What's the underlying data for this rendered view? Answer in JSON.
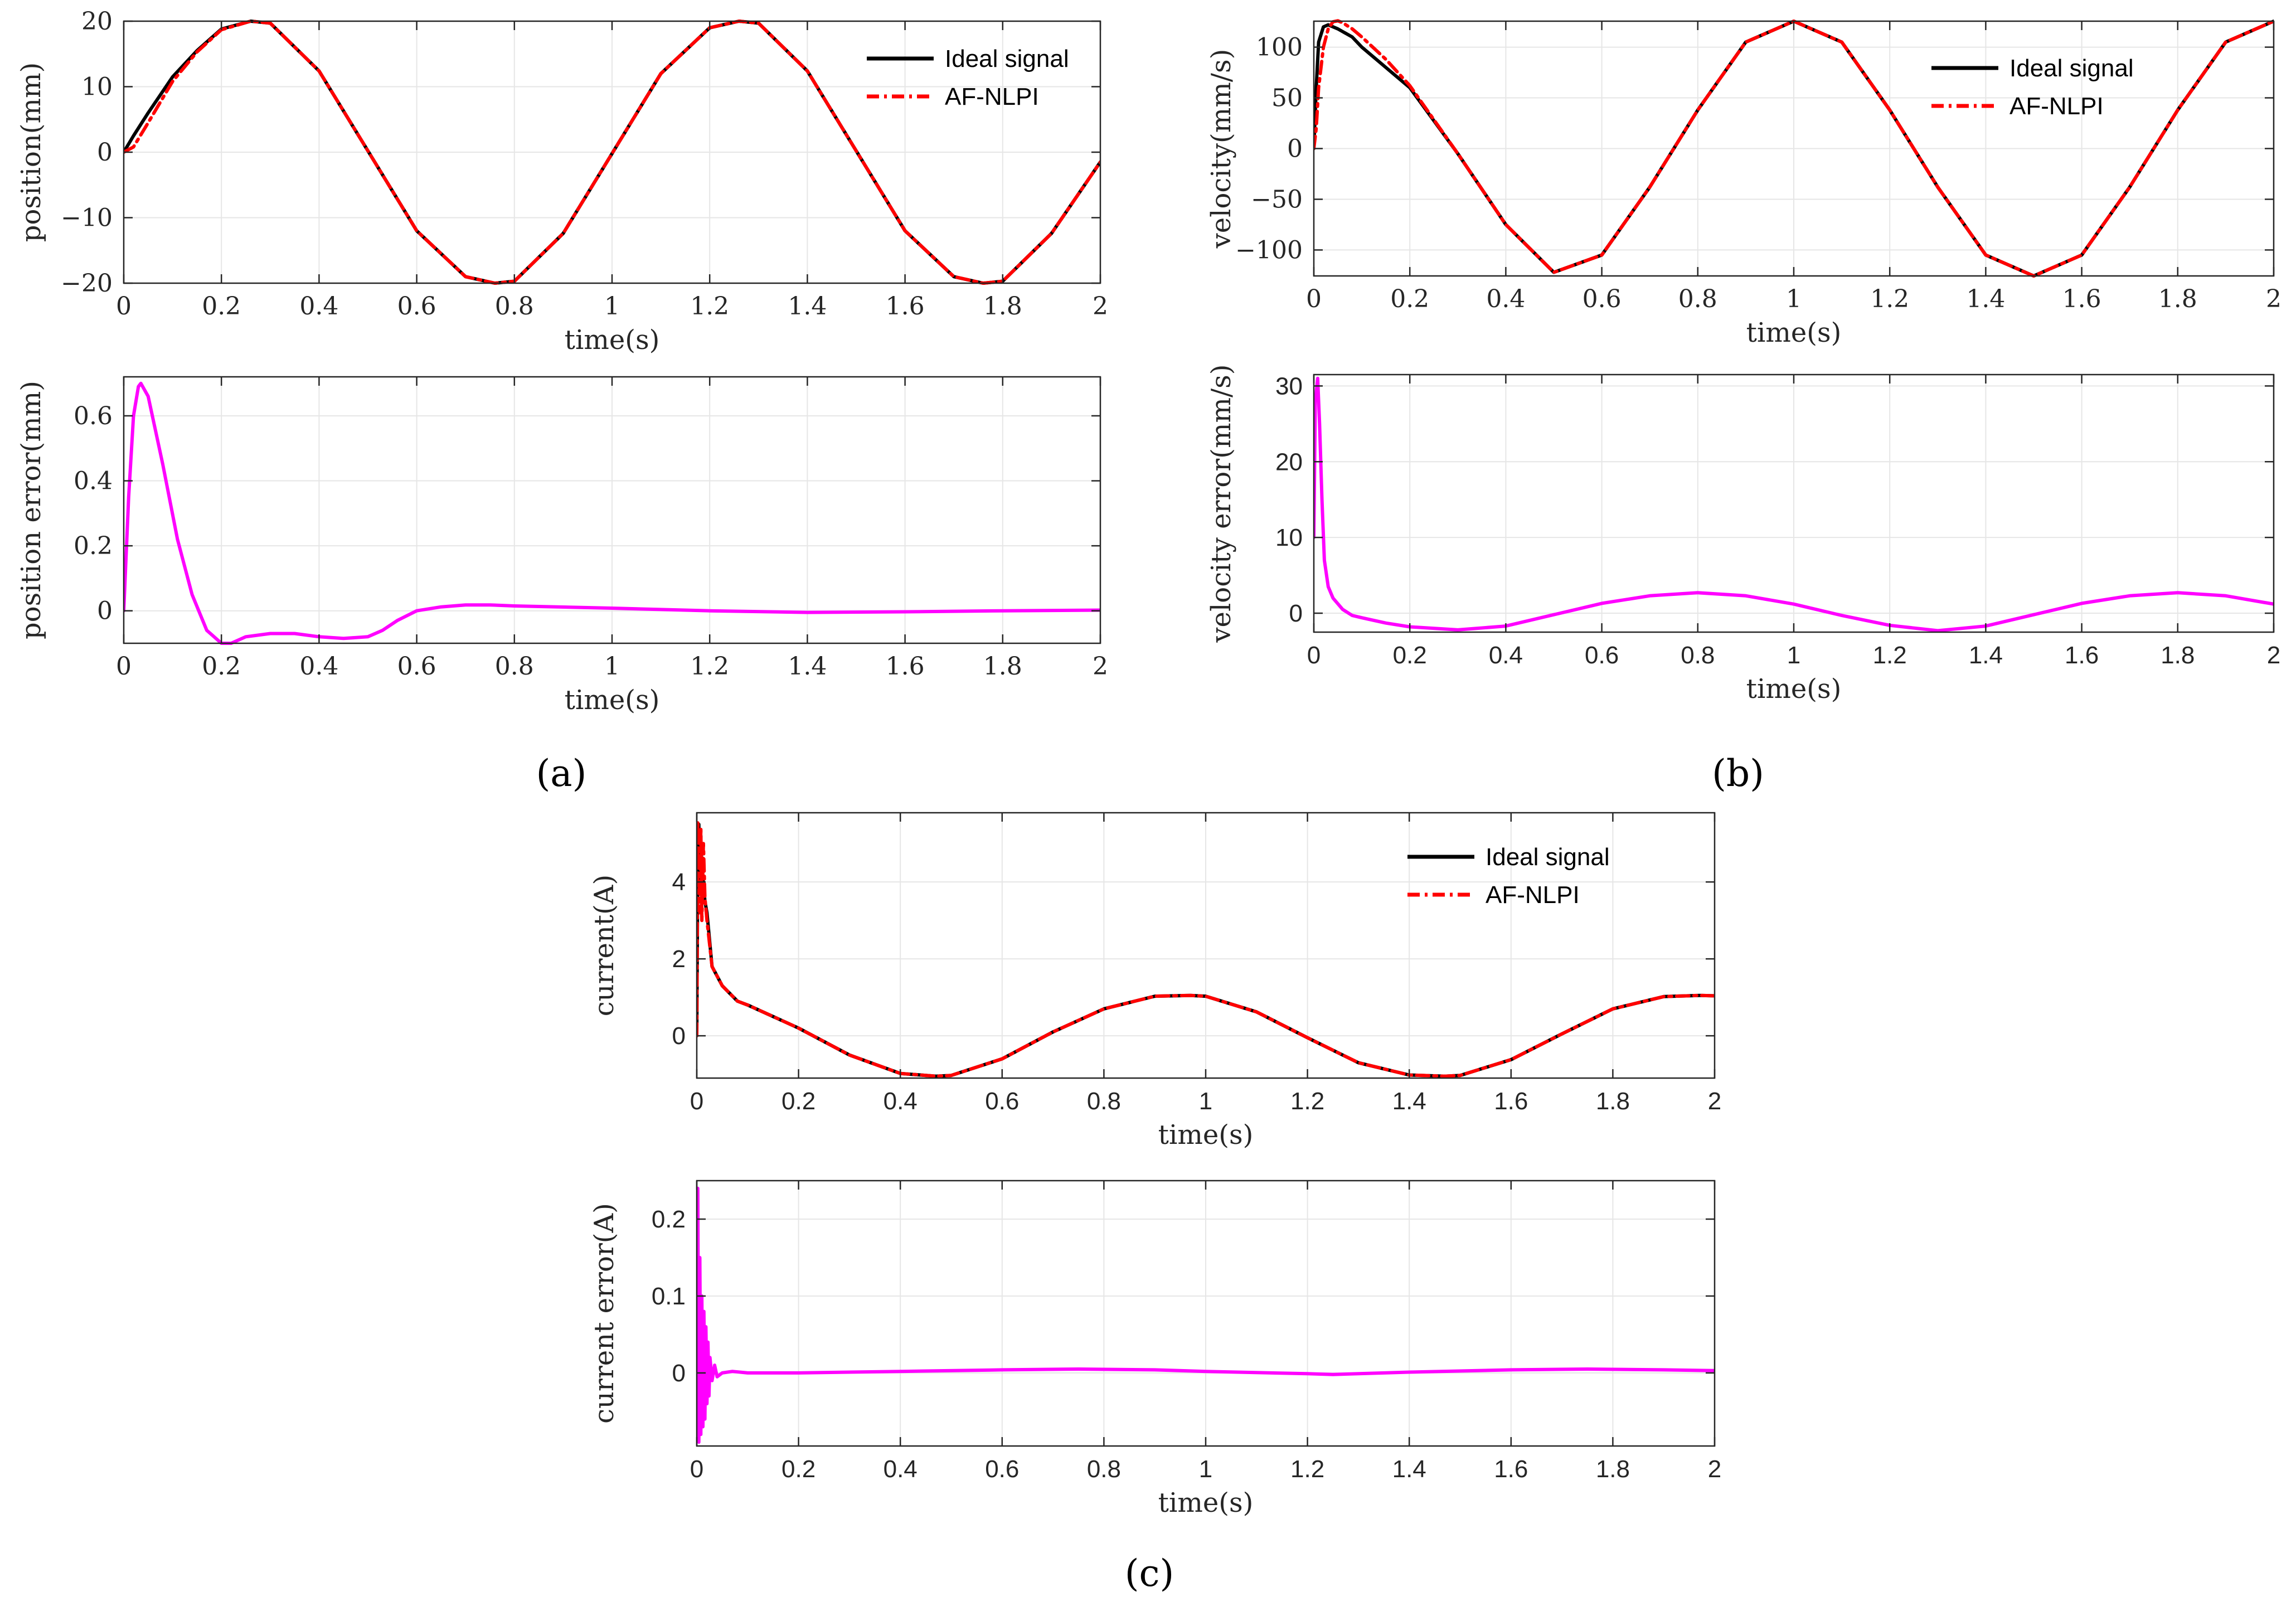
{
  "chart_data": [
    {
      "id": "a-top",
      "type": "line",
      "xlabel": "time(s)",
      "ylabel": "position(mm)",
      "xlim": [
        0,
        2
      ],
      "ylim": [
        -20,
        20
      ],
      "xticks": [
        "0",
        "0.2",
        "0.4",
        "0.6",
        "0.8",
        "1",
        "1.2",
        "1.4",
        "1.6",
        "1.8",
        "2"
      ],
      "xtickvals": [
        0,
        0.2,
        0.4,
        0.6,
        0.8,
        1,
        1.2,
        1.4,
        1.6,
        1.8,
        2
      ],
      "yticks": [
        "20",
        "10",
        "0",
        "−10",
        "−20"
      ],
      "ytickvals": [
        20,
        10,
        0,
        -10,
        -20
      ],
      "grid": true,
      "tick_font": "serif",
      "legend_position": "top-right",
      "series": [
        {
          "name": "Ideal signal",
          "color": "#000000",
          "dash": "solid",
          "in_legend": true,
          "x": [
            0,
            0.02,
            0.05,
            0.1,
            0.15,
            0.2,
            0.26,
            0.3,
            0.4,
            0.5,
            0.6,
            0.7,
            0.76,
            0.8,
            0.9,
            1.0,
            1.1,
            1.2,
            1.26,
            1.3,
            1.4,
            1.5,
            1.6,
            1.7,
            1.76,
            1.8,
            1.9,
            2.0
          ],
          "y": [
            0,
            2.5,
            6,
            11.5,
            15.5,
            18.8,
            20,
            19.7,
            12.4,
            0.2,
            -12,
            -19,
            -20,
            -19.7,
            -12.4,
            -0.2,
            12,
            19,
            20,
            19.7,
            12.4,
            0.2,
            -12,
            -19,
            -20,
            -19.7,
            -12.4,
            -1.5
          ]
        },
        {
          "name": "AF-NLPI",
          "color": "#ff0000",
          "dash": "dashdot",
          "in_legend": true,
          "x": [
            0,
            0.02,
            0.05,
            0.1,
            0.15,
            0.2,
            0.26,
            0.3,
            0.4,
            0.5,
            0.6,
            0.7,
            0.76,
            0.8,
            0.9,
            1.0,
            1.1,
            1.2,
            1.26,
            1.3,
            1.4,
            1.5,
            1.6,
            1.7,
            1.76,
            1.8,
            1.9,
            2.0
          ],
          "y": [
            0,
            0.8,
            4.5,
            10.8,
            15.3,
            18.7,
            20,
            19.7,
            12.4,
            0.2,
            -12,
            -19,
            -20,
            -19.7,
            -12.4,
            -0.2,
            12,
            19,
            20,
            19.7,
            12.4,
            0.2,
            -12,
            -19,
            -20,
            -19.7,
            -12.4,
            -1.5
          ]
        }
      ]
    },
    {
      "id": "a-bottom",
      "type": "line",
      "xlabel": "time(s)",
      "ylabel": "position error(mm)",
      "xlim": [
        0,
        2
      ],
      "ylim": [
        -0.1,
        0.72
      ],
      "xticks": [
        "0",
        "0.2",
        "0.4",
        "0.6",
        "0.8",
        "1",
        "1.2",
        "1.4",
        "1.6",
        "1.8",
        "2"
      ],
      "xtickvals": [
        0,
        0.2,
        0.4,
        0.6,
        0.8,
        1,
        1.2,
        1.4,
        1.6,
        1.8,
        2
      ],
      "yticks": [
        "0.6",
        "0.4",
        "0.2",
        "0"
      ],
      "ytickvals": [
        0.6,
        0.4,
        0.2,
        0
      ],
      "grid": true,
      "tick_font": "serif",
      "series": [
        {
          "name": "position error",
          "color": "#ff00ff",
          "dash": "solid",
          "in_legend": false,
          "x": [
            0,
            0.01,
            0.02,
            0.03,
            0.035,
            0.05,
            0.08,
            0.11,
            0.14,
            0.17,
            0.2,
            0.22,
            0.25,
            0.3,
            0.35,
            0.4,
            0.45,
            0.5,
            0.53,
            0.56,
            0.6,
            0.65,
            0.7,
            0.75,
            0.8,
            1.0,
            1.2,
            1.4,
            1.6,
            1.8,
            2.0
          ],
          "y": [
            0,
            0.35,
            0.6,
            0.69,
            0.7,
            0.66,
            0.45,
            0.22,
            0.05,
            -0.06,
            -0.1,
            -0.1,
            -0.08,
            -0.07,
            -0.07,
            -0.08,
            -0.085,
            -0.08,
            -0.06,
            -0.03,
            0.0,
            0.012,
            0.018,
            0.018,
            0.015,
            0.008,
            0.0,
            -0.005,
            -0.003,
            0.0,
            0.002
          ]
        }
      ]
    },
    {
      "id": "b-top",
      "type": "line",
      "xlabel": "time(s)",
      "ylabel": "velocity(mm/s)",
      "xlim": [
        0,
        2
      ],
      "ylim": [
        -125.6,
        125.6
      ],
      "xticks": [
        "0",
        "0.2",
        "0.4",
        "0.6",
        "0.8",
        "1",
        "1.2",
        "1.4",
        "1.6",
        "1.8",
        "2"
      ],
      "xtickvals": [
        0,
        0.2,
        0.4,
        0.6,
        0.8,
        1,
        1.2,
        1.4,
        1.6,
        1.8,
        2
      ],
      "yticks": [
        "100",
        "50",
        "0",
        "−50",
        "−100"
      ],
      "ytickvals": [
        100,
        50,
        0,
        -50,
        -100
      ],
      "grid": true,
      "tick_font": "serif",
      "legend_position": "top-right",
      "series": [
        {
          "name": "Ideal signal",
          "color": "#000000",
          "dash": "solid",
          "in_legend": true,
          "x": [
            0,
            0.005,
            0.01,
            0.02,
            0.03,
            0.05,
            0.08,
            0.1,
            0.15,
            0.2,
            0.3,
            0.4,
            0.5,
            0.6,
            0.7,
            0.8,
            0.9,
            1.0,
            1.1,
            1.2,
            1.3,
            1.4,
            1.5,
            1.6,
            1.7,
            1.8,
            1.9,
            2.0
          ],
          "y": [
            0,
            60,
            105,
            120,
            122,
            118,
            110,
            100,
            80,
            60,
            -5,
            -75,
            -122,
            -105,
            -38,
            38,
            105,
            125.6,
            105,
            38,
            -38,
            -105,
            -125.6,
            -105,
            -38,
            38,
            105,
            125.6
          ]
        },
        {
          "name": "AF-NLPI",
          "color": "#ff0000",
          "dash": "dashdot",
          "in_legend": true,
          "x": [
            0,
            0.005,
            0.01,
            0.02,
            0.03,
            0.04,
            0.05,
            0.06,
            0.08,
            0.1,
            0.15,
            0.2,
            0.3,
            0.4,
            0.5,
            0.6,
            0.7,
            0.8,
            0.9,
            1.0,
            1.1,
            1.2,
            1.3,
            1.4,
            1.5,
            1.6,
            1.7,
            1.8,
            1.9,
            2.0
          ],
          "y": [
            0,
            20,
            60,
            100,
            118,
            125,
            126,
            124,
            118,
            110,
            88,
            62,
            -5,
            -75,
            -122,
            -105,
            -38,
            38,
            105,
            125.6,
            105,
            38,
            -38,
            -105,
            -125.6,
            -105,
            -38,
            38,
            105,
            125.6
          ]
        }
      ]
    },
    {
      "id": "b-bottom",
      "type": "line",
      "xlabel": "time(s)",
      "ylabel": "velocity error(mm/s)",
      "xlim": [
        0,
        2
      ],
      "ylim": [
        -2.5,
        31.5
      ],
      "xticks": [
        "0",
        "0.2",
        "0.4",
        "0.6",
        "0.8",
        "1",
        "1.2",
        "1.4",
        "1.6",
        "1.8",
        "2"
      ],
      "xtickvals": [
        0,
        0.2,
        0.4,
        0.6,
        0.8,
        1,
        1.2,
        1.4,
        1.6,
        1.8,
        2
      ],
      "yticks": [
        "30",
        "20",
        "10",
        "0"
      ],
      "ytickvals": [
        30,
        20,
        10,
        0
      ],
      "grid": true,
      "tick_font": "sans",
      "series": [
        {
          "name": "velocity error",
          "color": "#ff00ff",
          "dash": "solid",
          "in_legend": false,
          "x": [
            0,
            0.003,
            0.008,
            0.012,
            0.017,
            0.022,
            0.03,
            0.04,
            0.06,
            0.08,
            0.1,
            0.15,
            0.2,
            0.3,
            0.4,
            0.5,
            0.6,
            0.7,
            0.8,
            0.9,
            1.0,
            1.1,
            1.2,
            1.3,
            1.4,
            1.5,
            1.6,
            1.7,
            1.8,
            1.9,
            2.0
          ],
          "y": [
            10,
            28,
            31,
            25,
            15,
            7,
            3.5,
            2,
            0.5,
            -0.3,
            -0.6,
            -1.3,
            -1.8,
            -2.2,
            -1.7,
            -0.2,
            1.3,
            2.3,
            2.7,
            2.3,
            1.2,
            -0.3,
            -1.6,
            -2.3,
            -1.7,
            -0.2,
            1.3,
            2.3,
            2.7,
            2.3,
            1.2
          ]
        }
      ]
    },
    {
      "id": "c-top",
      "type": "line",
      "xlabel": "time(s)",
      "ylabel": "current(A)",
      "xlim": [
        0,
        2
      ],
      "ylim": [
        -1.1,
        5.8
      ],
      "xticks": [
        "0",
        "0.2",
        "0.4",
        "0.6",
        "0.8",
        "1",
        "1.2",
        "1.4",
        "1.6",
        "1.8",
        "2"
      ],
      "xtickvals": [
        0,
        0.2,
        0.4,
        0.6,
        0.8,
        1,
        1.2,
        1.4,
        1.6,
        1.8,
        2
      ],
      "yticks": [
        "4",
        "2",
        "0"
      ],
      "ytickvals": [
        4,
        2,
        0
      ],
      "grid": true,
      "tick_font": "sans",
      "legend_position": "top-right",
      "series": [
        {
          "name": "Ideal signal",
          "color": "#000000",
          "dash": "solid",
          "in_legend": true,
          "x": [
            0,
            0.002,
            0.004,
            0.006,
            0.008,
            0.01,
            0.013,
            0.016,
            0.02,
            0.03,
            0.05,
            0.08,
            0.1,
            0.15,
            0.2,
            0.3,
            0.4,
            0.47,
            0.5,
            0.6,
            0.7,
            0.8,
            0.9,
            0.97,
            1.0,
            1.1,
            1.2,
            1.3,
            1.4,
            1.47,
            1.5,
            1.6,
            1.7,
            1.8,
            1.9,
            1.97,
            2.0
          ],
          "y": [
            0,
            4.5,
            5.5,
            3.8,
            5.2,
            4.2,
            4.0,
            3.5,
            3.2,
            1.8,
            1.3,
            0.9,
            0.8,
            0.5,
            0.2,
            -0.5,
            -0.98,
            -1.05,
            -1.03,
            -0.6,
            0.1,
            0.7,
            1.03,
            1.05,
            1.03,
            0.62,
            -0.05,
            -0.7,
            -1.02,
            -1.05,
            -1.03,
            -0.62,
            0.05,
            0.7,
            1.02,
            1.05,
            1.04
          ]
        },
        {
          "name": "AF-NLPI",
          "color": "#ff0000",
          "dash": "dashdot",
          "in_legend": true,
          "x": [
            0,
            0.002,
            0.004,
            0.006,
            0.008,
            0.01,
            0.013,
            0.016,
            0.02,
            0.03,
            0.05,
            0.08,
            0.1,
            0.15,
            0.2,
            0.3,
            0.4,
            0.47,
            0.5,
            0.6,
            0.7,
            0.8,
            0.9,
            0.97,
            1.0,
            1.1,
            1.2,
            1.3,
            1.4,
            1.47,
            1.5,
            1.6,
            1.7,
            1.8,
            1.9,
            1.97,
            2.0
          ],
          "y": [
            0,
            5.6,
            4.5,
            3.2,
            5.4,
            3.0,
            5.0,
            3.6,
            3.0,
            1.8,
            1.3,
            0.9,
            0.8,
            0.5,
            0.2,
            -0.5,
            -0.98,
            -1.05,
            -1.03,
            -0.6,
            0.1,
            0.7,
            1.03,
            1.05,
            1.03,
            0.62,
            -0.05,
            -0.7,
            -1.02,
            -1.05,
            -1.03,
            -0.62,
            0.05,
            0.7,
            1.02,
            1.05,
            1.04
          ]
        }
      ]
    },
    {
      "id": "c-bottom",
      "type": "line",
      "xlabel": "time(s)",
      "ylabel": "current error(A)",
      "xlim": [
        0,
        2
      ],
      "ylim": [
        -0.095,
        0.25
      ],
      "xticks": [
        "0",
        "0.2",
        "0.4",
        "0.6",
        "0.8",
        "1",
        "1.2",
        "1.4",
        "1.6",
        "1.8",
        "2"
      ],
      "xtickvals": [
        0,
        0.2,
        0.4,
        0.6,
        0.8,
        1,
        1.2,
        1.4,
        1.6,
        1.8,
        2
      ],
      "yticks": [
        "0.2",
        "0.1",
        "0"
      ],
      "ytickvals": [
        0.2,
        0.1,
        0
      ],
      "grid": true,
      "tick_font": "sans",
      "series": [
        {
          "name": "current error",
          "color": "#ff00ff",
          "dash": "solid",
          "in_legend": false,
          "x": [
            0,
            0.002,
            0.004,
            0.006,
            0.008,
            0.01,
            0.012,
            0.014,
            0.016,
            0.018,
            0.02,
            0.022,
            0.024,
            0.026,
            0.03,
            0.035,
            0.04,
            0.05,
            0.07,
            0.1,
            0.2,
            0.4,
            0.6,
            0.75,
            0.9,
            1.0,
            1.2,
            1.25,
            1.4,
            1.6,
            1.75,
            1.9,
            2.0
          ],
          "y": [
            0,
            0.24,
            -0.09,
            0.15,
            -0.08,
            0.1,
            -0.07,
            0.08,
            -0.06,
            0.06,
            -0.04,
            0.04,
            -0.03,
            0.02,
            -0.01,
            0.01,
            -0.005,
            0.0,
            0.002,
            0.0,
            0.0,
            0.002,
            0.004,
            0.005,
            0.004,
            0.002,
            -0.001,
            -0.002,
            0.001,
            0.004,
            0.005,
            0.004,
            0.003
          ]
        }
      ]
    }
  ],
  "panel_labels": [
    "(a)",
    "(b)",
    "(c)"
  ]
}
